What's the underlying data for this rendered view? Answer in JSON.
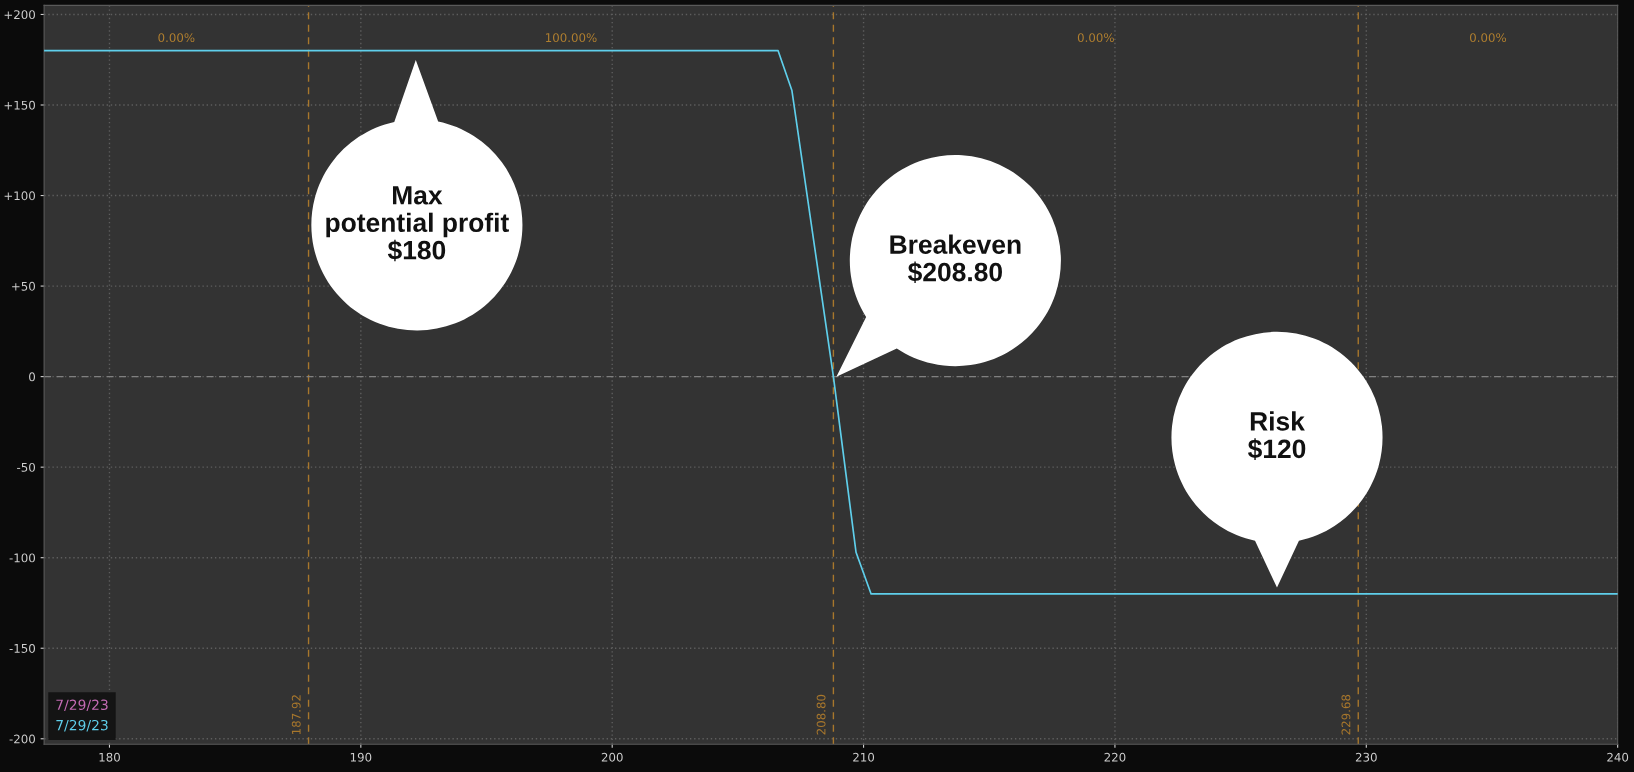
{
  "chart_data": {
    "type": "line",
    "x": [
      177.4,
      206.6,
      207.15,
      208.8,
      209.7,
      210.3,
      240
    ],
    "series": [
      {
        "name": "7/29/23",
        "color": "#c46bb4",
        "values": [
          null,
          null,
          null,
          null,
          null,
          null,
          null
        ]
      },
      {
        "name": "7/29/23",
        "color": "#5fcfeb",
        "values": [
          180,
          180,
          158,
          0,
          -97,
          -120,
          -120
        ]
      }
    ],
    "xlim": [
      177.4,
      240
    ],
    "xticks": [
      180,
      190,
      200,
      210,
      220,
      230,
      240
    ],
    "ylim": [
      -203,
      205
    ],
    "yticks": [
      {
        "value": 200,
        "label": "+200"
      },
      {
        "value": 150,
        "label": "+150"
      },
      {
        "value": 100,
        "label": "+100"
      },
      {
        "value": 50,
        "label": "+50"
      },
      0,
      {
        "value": -50,
        "label": "-50"
      },
      {
        "value": -100,
        "label": "-100"
      },
      {
        "value": -150,
        "label": "-150"
      },
      {
        "value": -200,
        "label": "-200"
      }
    ],
    "grid": true,
    "legend": "bottom left",
    "ref_lines": [
      {
        "axis": "x",
        "value": 187.92,
        "label": "187.92",
        "color": "#a8772c",
        "line_style": "dashed"
      },
      {
        "axis": "x",
        "value": 208.8,
        "label": "208.80",
        "color": "#a8772c",
        "line_style": "dashed"
      },
      {
        "axis": "x",
        "value": 229.68,
        "label": "229.68",
        "color": "#a8772c",
        "line_style": "dashed"
      },
      {
        "axis": "y",
        "value": 0,
        "color": "#808080",
        "line_style": "dashed"
      }
    ],
    "annotations": [
      "0.00%",
      "100.00%",
      "0.00%",
      "0.00%",
      "Max\npotential profit\n$180",
      "Breakeven\n$208.80",
      "Risk\n$120"
    ]
  }
}
